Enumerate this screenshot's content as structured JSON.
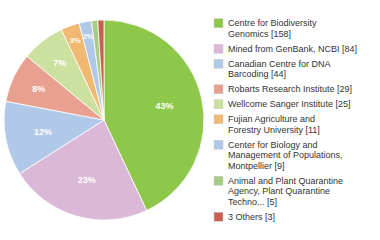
{
  "chart_data": {
    "type": "pie",
    "categories": [
      "Centre for Biodiversity\nGenomics [158]",
      "Mined from GenBank, NCBI [84]",
      "Canadian Centre for DNA\nBarcoding [44]",
      "Robarts Research Institute [29]",
      "Wellcome Sanger Institute [25]",
      "Fujian Agriculture and\nForestry University [11]",
      "Center for Biology and\nManagement of Populations,\nMontpellier [9]",
      "Animal and Plant Quarantine\nAgency, Plant Quarantine\nTechno... [5]",
      "3 Others [3]"
    ],
    "values": [
      43,
      23,
      12,
      8,
      7,
      3,
      2,
      1,
      1
    ],
    "value_labels": [
      "43%",
      "23%",
      "12%",
      "8%",
      "7%",
      "3%",
      "2%",
      null,
      null
    ],
    "colors": [
      "#8dc84b",
      "#dbb8d8",
      "#b0c9e8",
      "#e8a090",
      "#cce0a0",
      "#f0b870",
      "#b0c9e8",
      "#a8cc88",
      "#c86050"
    ],
    "data_labels": true,
    "legend": "right"
  }
}
